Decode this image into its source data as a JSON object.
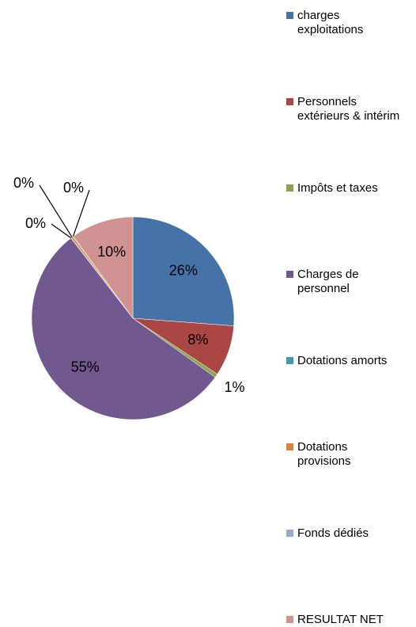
{
  "chart_data": {
    "type": "pie",
    "categories": [
      "charges exploitations",
      "Personnels extérieurs & intérim",
      "Impôts et taxes",
      "Charges de personnel",
      "Dotations amorts",
      "Dotations provisions",
      "Fonds dédiés",
      "RESULTAT NET"
    ],
    "values": [
      26.2,
      8.1,
      0.6,
      54.6,
      0.1,
      0.3,
      0.1,
      10.0
    ],
    "value_labels": [
      "26%",
      "8%",
      "1%",
      "55%",
      "0%",
      "0%",
      "0%",
      "10%"
    ],
    "colors": [
      "#4572a7",
      "#aa4643",
      "#89a54e",
      "#71588f",
      "#4198af",
      "#db843d",
      "#93a9cf",
      "#d19392"
    ],
    "legend": "right"
  }
}
